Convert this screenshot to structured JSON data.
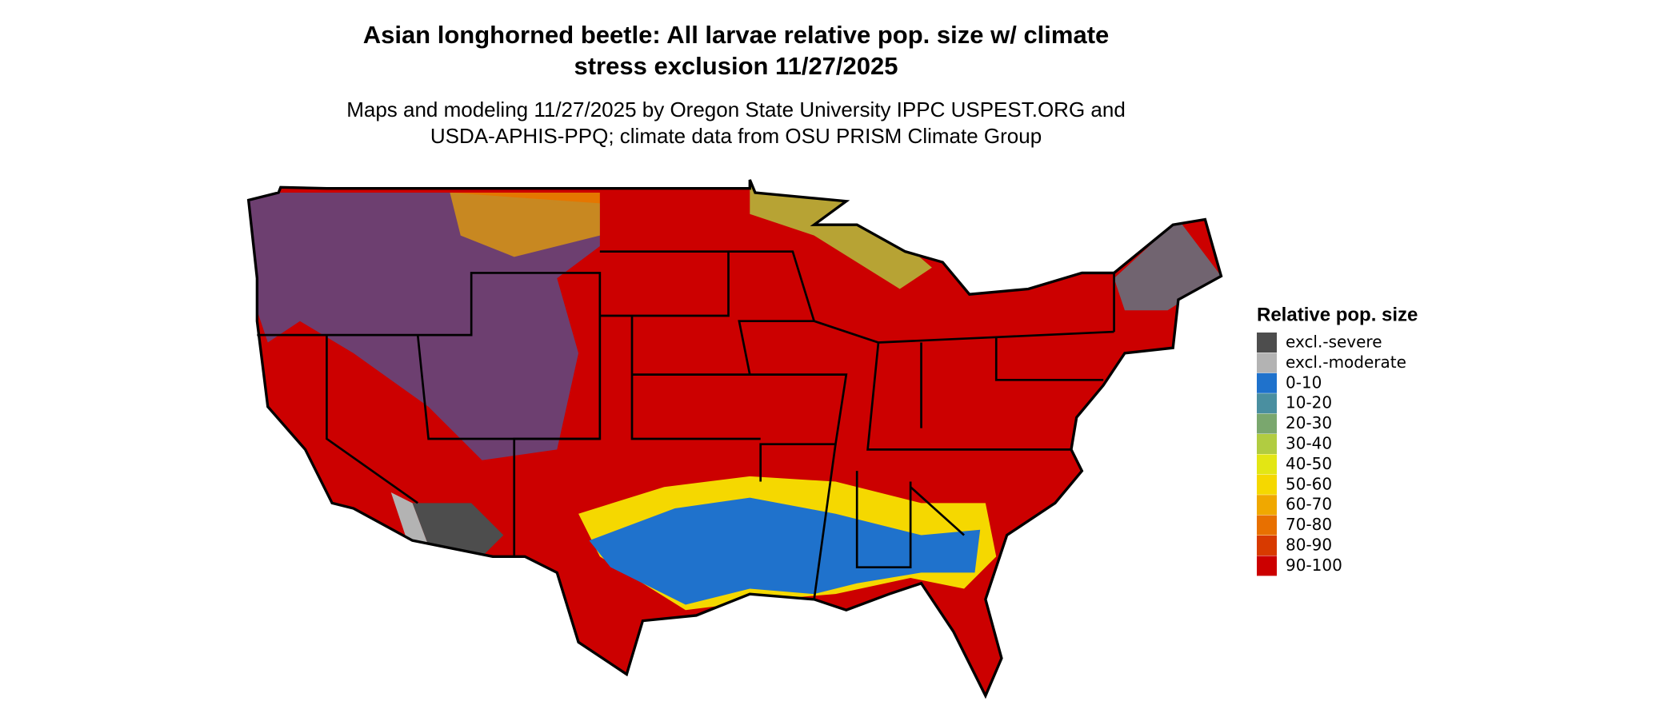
{
  "title": [
    "Asian longhorned beetle: All larvae relative pop. size w/ climate",
    "stress exclusion 11/27/2025"
  ],
  "subtitle": [
    "Maps and modeling 11/27/2025 by Oregon State University IPPC USPEST.ORG and",
    "USDA-APHIS-PPQ; climate data from OSU PRISM Climate Group"
  ],
  "legend": {
    "title": "Relative pop. size",
    "items": [
      {
        "label": "excl.-severe",
        "color": "#4d4d4d"
      },
      {
        "label": "excl.-moderate",
        "color": "#b3b3b3"
      },
      {
        "label": "0-10",
        "color": "#1f72cc"
      },
      {
        "label": "10-20",
        "color": "#4a8fa0"
      },
      {
        "label": "20-30",
        "color": "#7aa76e"
      },
      {
        "label": "30-40",
        "color": "#b1cc41"
      },
      {
        "label": "40-50",
        "color": "#e3e614"
      },
      {
        "label": "50-60",
        "color": "#f5d800"
      },
      {
        "label": "60-70",
        "color": "#f0a800"
      },
      {
        "label": "70-80",
        "color": "#e87000"
      },
      {
        "label": "80-90",
        "color": "#d83a00"
      },
      {
        "label": "90-100",
        "color": "#cc0000"
      }
    ]
  }
}
